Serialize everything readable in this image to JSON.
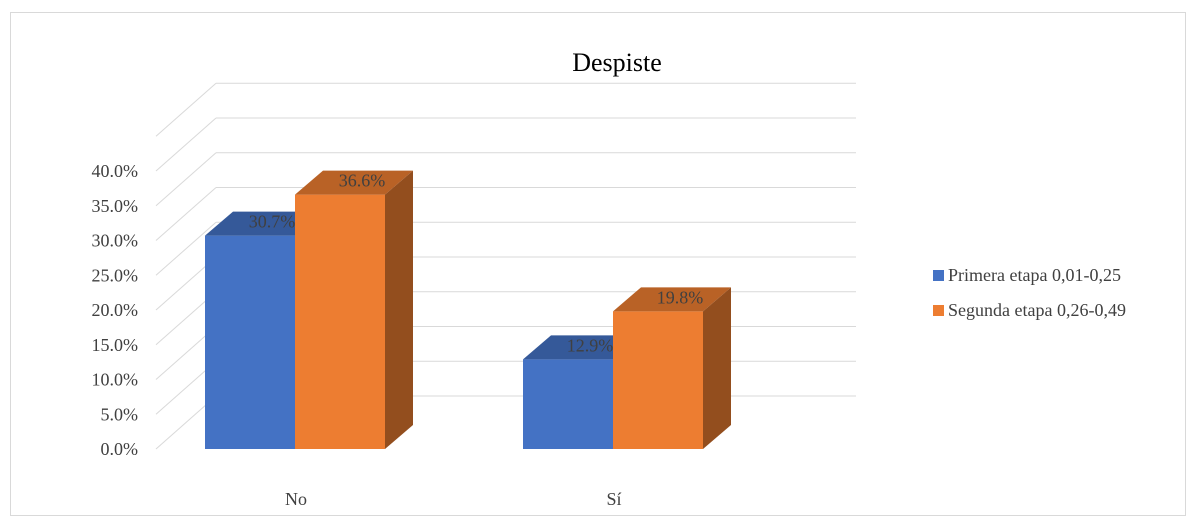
{
  "chart_data": {
    "type": "bar",
    "title": "Despiste",
    "categories": [
      "No",
      "Sí"
    ],
    "series": [
      {
        "name": "Primera etapa 0,01-0,25",
        "values": [
          30.7,
          12.9
        ],
        "labels": [
          "30.7%",
          "12.9%"
        ],
        "color": "#4472C4"
      },
      {
        "name": "Segunda etapa 0,26-0,49",
        "values": [
          36.6,
          19.8
        ],
        "labels": [
          "36.6%",
          "19.8%"
        ],
        "color": "#ED7D31"
      }
    ],
    "ylim": [
      0,
      40
    ],
    "yticks": [
      "0.0%",
      "5.0%",
      "10.0%",
      "15.0%",
      "20.0%",
      "25.0%",
      "30.0%",
      "35.0%",
      "40.0%"
    ],
    "grid": true,
    "legend_position": "right",
    "style": "3d-clustered-column"
  }
}
